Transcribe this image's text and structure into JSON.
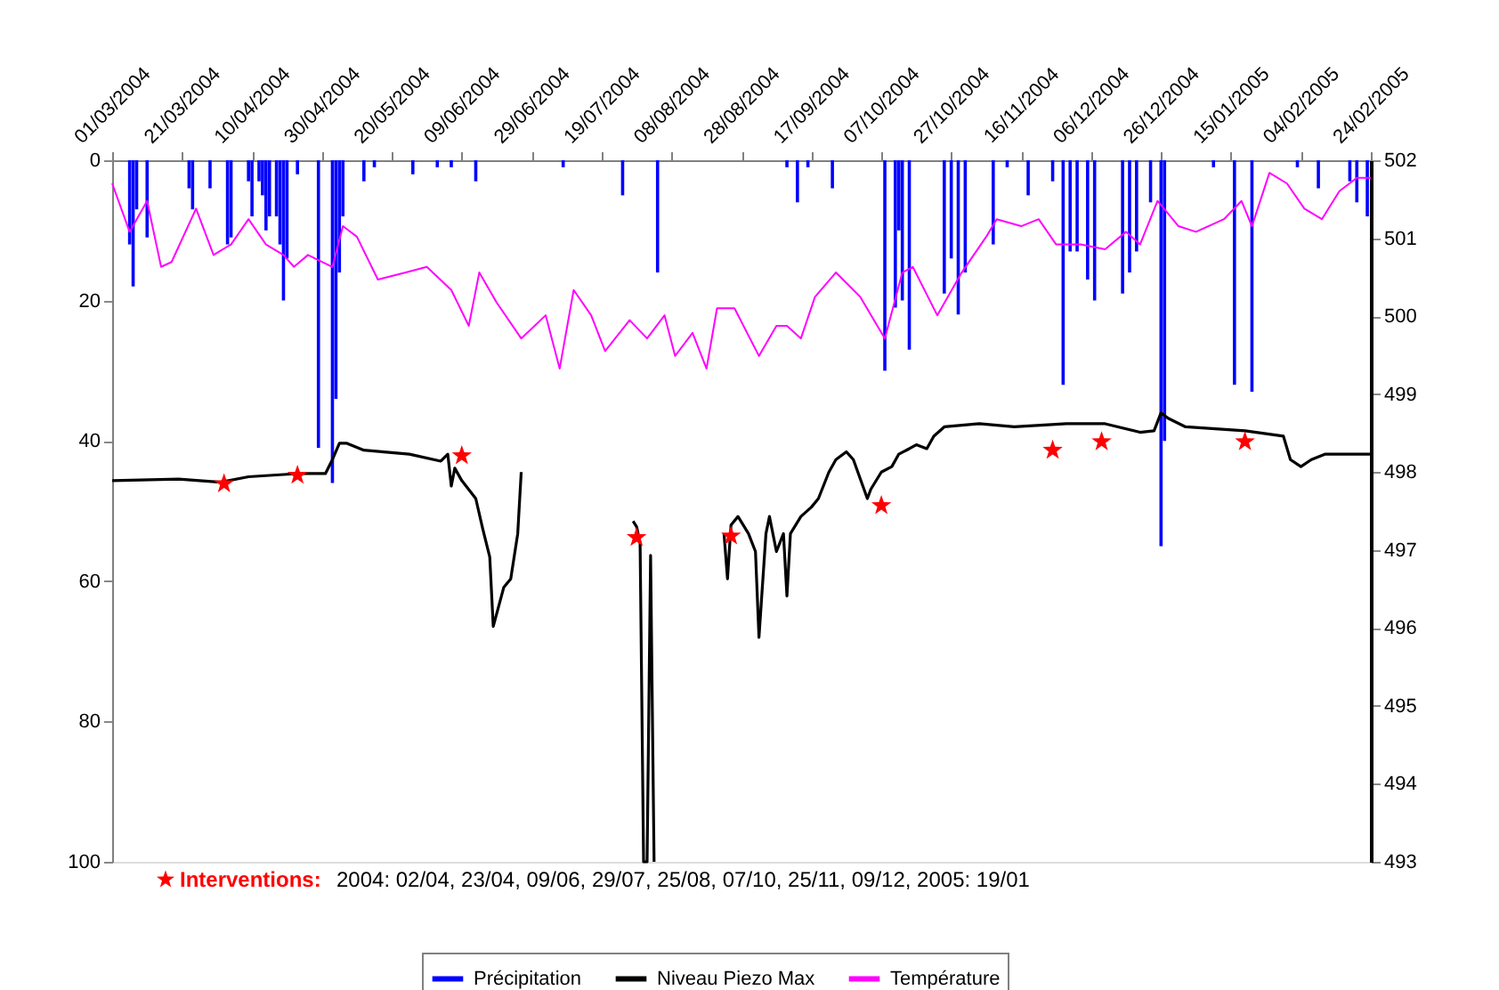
{
  "chart_data": {
    "type": "bar",
    "legend": "bottom",
    "ylim": [
      100,
      0
    ],
    "yticks": [
      0,
      20,
      40,
      60,
      80,
      100
    ],
    "y2lim": [
      493,
      502
    ],
    "y2ticks": [
      493,
      494,
      495,
      496,
      497,
      498,
      499,
      500,
      501,
      502
    ],
    "xlim": [
      "2004-03-01",
      "2005-02-24"
    ],
    "xticks": [
      {
        "value": "2004-03-01",
        "label": "01/03/2004"
      },
      {
        "value": "2004-03-21",
        "label": "21/03/2004"
      },
      {
        "value": "2004-04-10",
        "label": "10/04/2004"
      },
      {
        "value": "2004-04-30",
        "label": "30/04/2004"
      },
      {
        "value": "2004-05-20",
        "label": "20/05/2004"
      },
      {
        "value": "2004-06-09",
        "label": "09/06/2004"
      },
      {
        "value": "2004-06-29",
        "label": "29/06/2004"
      },
      {
        "value": "2004-07-19",
        "label": "19/07/2004"
      },
      {
        "value": "2004-08-08",
        "label": "08/08/2004"
      },
      {
        "value": "2004-08-28",
        "label": "28/08/2004"
      },
      {
        "value": "2004-09-17",
        "label": "17/09/2004"
      },
      {
        "value": "2004-10-07",
        "label": "07/10/2004"
      },
      {
        "value": "2004-10-27",
        "label": "27/10/2004"
      },
      {
        "value": "2004-11-16",
        "label": "16/11/2004"
      },
      {
        "value": "2004-12-06",
        "label": "06/12/2004"
      },
      {
        "value": "2004-12-26",
        "label": "26/12/2004"
      },
      {
        "value": "2005-01-15",
        "label": "15/01/2005"
      },
      {
        "value": "2005-02-04",
        "label": "04/02/2005"
      },
      {
        "value": "2005-02-24",
        "label": "24/02/2005"
      }
    ],
    "annotations": [
      "2004: 02/04, 23/04, 09/06, 29/07, 25/08, 07/10, 25/11, 09/12, 2005: 19/01"
    ],
    "series": [
      {
        "name": "Précipitation",
        "color": "#0000ff",
        "x": [
          "2004-03-06",
          "2004-03-07",
          "2004-03-08",
          "2004-03-11",
          "2004-03-23",
          "2004-03-24",
          "2004-03-29",
          "2004-04-03",
          "2004-04-04",
          "2004-04-09",
          "2004-04-10",
          "2004-04-12",
          "2004-04-13",
          "2004-04-14",
          "2004-04-15",
          "2004-04-17",
          "2004-04-18",
          "2004-04-19",
          "2004-04-20",
          "2004-04-23",
          "2004-04-29",
          "2004-05-03",
          "2004-05-04",
          "2004-05-05",
          "2004-05-06",
          "2004-05-12",
          "2004-05-15",
          "2004-05-26",
          "2004-06-02",
          "2004-06-06",
          "2004-06-13",
          "2004-07-08",
          "2004-07-25",
          "2004-08-04",
          "2004-09-10",
          "2004-09-13",
          "2004-09-16",
          "2004-09-23",
          "2004-10-08",
          "2004-10-11",
          "2004-10-12",
          "2004-10-13",
          "2004-10-15",
          "2004-10-25",
          "2004-10-27",
          "2004-10-29",
          "2004-10-31",
          "2004-11-08",
          "2004-11-12",
          "2004-11-18",
          "2004-11-25",
          "2004-11-28",
          "2004-11-30",
          "2004-12-02",
          "2004-12-05",
          "2004-12-07",
          "2004-12-15",
          "2004-12-17",
          "2004-12-19",
          "2004-12-23",
          "2004-12-26",
          "2004-12-27",
          "2005-01-10",
          "2005-01-16",
          "2005-01-21",
          "2005-02-03",
          "2005-02-09",
          "2005-02-18",
          "2005-02-20",
          "2005-02-23"
        ],
        "values": [
          12,
          18,
          7,
          11,
          4,
          7,
          4,
          12,
          11,
          3,
          8,
          3,
          5,
          10,
          8,
          8,
          12,
          20,
          14,
          2,
          41,
          46,
          34,
          16,
          8,
          3,
          1,
          2,
          1,
          1,
          3,
          1,
          5,
          16,
          1,
          6,
          1,
          4,
          30,
          21,
          10,
          20,
          27,
          19,
          14,
          22,
          16,
          12,
          1,
          5,
          3,
          32,
          13,
          13,
          17,
          20,
          19,
          16,
          13,
          6,
          55,
          40,
          1,
          32,
          33,
          1,
          4,
          3,
          6,
          8
        ]
      },
      {
        "name": "Niveau Piezo Max",
        "type": "line",
        "color": "#000000",
        "axis": "y2",
        "x": [
          "2004-03-01",
          "2004-03-20",
          "2004-04-01",
          "2004-04-09",
          "2004-04-23",
          "2004-05-01",
          "2004-05-03",
          "2004-05-05",
          "2004-05-07",
          "2004-05-12",
          "2004-05-25",
          "2004-06-03",
          "2004-06-05",
          "2004-06-06",
          "2004-06-07",
          "2004-06-09",
          "2004-06-13",
          "2004-06-15",
          "2004-06-17",
          "2004-06-18",
          "2004-06-21",
          "2004-06-23",
          "2004-06-25",
          "2004-06-26",
          "2004-07-10",
          "2004-07-28",
          "2004-07-29",
          "2004-07-30",
          "2004-07-31",
          "2004-08-01",
          "2004-08-02",
          "2004-08-03",
          "2004-08-12",
          "2004-08-23",
          "2004-08-24",
          "2004-08-25",
          "2004-08-27",
          "2004-08-30",
          "2004-09-01",
          "2004-09-02",
          "2004-09-04",
          "2004-09-05",
          "2004-09-07",
          "2004-09-09",
          "2004-09-10",
          "2004-09-11",
          "2004-09-14",
          "2004-09-17",
          "2004-09-19",
          "2004-09-22",
          "2004-09-24",
          "2004-09-27",
          "2004-09-29",
          "2004-10-03",
          "2004-10-04",
          "2004-10-07",
          "2004-10-10",
          "2004-10-12",
          "2004-10-15",
          "2004-10-17",
          "2004-10-20",
          "2004-10-22",
          "2004-10-25",
          "2004-11-04",
          "2004-11-14",
          "2004-11-29",
          "2004-12-10",
          "2004-12-20",
          "2004-12-24",
          "2004-12-26",
          "2004-12-28",
          "2005-01-02",
          "2005-01-19",
          "2005-01-30",
          "2005-02-01",
          "2005-02-04",
          "2005-02-07",
          "2005-02-11",
          "2005-02-24"
        ],
        "values": [
          497.89,
          497.91,
          497.87,
          497.94,
          497.98,
          497.98,
          498.16,
          498.37,
          498.37,
          498.28,
          498.23,
          498.14,
          498.23,
          497.82,
          498.05,
          497.89,
          497.66,
          497.27,
          496.91,
          496.02,
          496.52,
          496.63,
          497.21,
          498.0,
          null,
          497.37,
          497.3,
          497.09,
          493.0,
          493.0,
          496.93,
          493.0,
          null,
          497.21,
          496.63,
          497.32,
          497.43,
          497.21,
          496.98,
          495.88,
          497.21,
          497.43,
          496.98,
          497.21,
          496.41,
          497.21,
          497.43,
          497.55,
          497.66,
          498.0,
          498.16,
          498.26,
          498.16,
          497.66,
          497.78,
          498.0,
          498.07,
          498.23,
          498.3,
          498.35,
          498.3,
          498.46,
          498.58,
          498.62,
          498.58,
          498.62,
          498.62,
          498.51,
          498.53,
          498.76,
          498.69,
          498.58,
          498.53,
          498.46,
          498.16,
          498.07,
          498.16,
          498.23,
          498.23
        ]
      },
      {
        "name": "Température",
        "type": "line",
        "color": "#ff00ff",
        "x": [
          "2004-03-01",
          "2004-03-06",
          "2004-03-11",
          "2004-03-15",
          "2004-03-18",
          "2004-03-25",
          "2004-03-30",
          "2004-04-04",
          "2004-04-09",
          "2004-04-14",
          "2004-04-19",
          "2004-04-22",
          "2004-04-26",
          "2004-05-03",
          "2004-05-06",
          "2004-05-10",
          "2004-05-16",
          "2004-05-24",
          "2004-05-30",
          "2004-06-06",
          "2004-06-11",
          "2004-06-14",
          "2004-06-19",
          "2004-06-26",
          "2004-07-03",
          "2004-07-07",
          "2004-07-11",
          "2004-07-16",
          "2004-07-20",
          "2004-07-27",
          "2004-08-01",
          "2004-08-06",
          "2004-08-09",
          "2004-08-14",
          "2004-08-18",
          "2004-08-21",
          "2004-08-26",
          "2004-09-02",
          "2004-09-07",
          "2004-09-10",
          "2004-09-14",
          "2004-09-18",
          "2004-09-24",
          "2004-10-01",
          "2004-10-08",
          "2004-10-13",
          "2004-10-16",
          "2004-10-23",
          "2004-10-30",
          "2004-11-06",
          "2004-11-09",
          "2004-11-16",
          "2004-11-21",
          "2004-11-26",
          "2004-12-03",
          "2004-12-10",
          "2004-12-16",
          "2004-12-20",
          "2004-12-25",
          "2004-12-31",
          "2005-01-05",
          "2005-01-13",
          "2005-01-18",
          "2005-01-21",
          "2005-01-26",
          "2005-01-31",
          "2005-02-05",
          "2005-02-10",
          "2005-02-15",
          "2005-02-20",
          "2005-02-24"
        ],
        "values": [
          3.3,
          10.2,
          5.8,
          15.2,
          14.5,
          6.9,
          13.5,
          12.0,
          8.4,
          12.0,
          13.5,
          15.2,
          13.5,
          15.2,
          9.4,
          10.9,
          17.0,
          16.0,
          15.2,
          18.5,
          23.6,
          16.0,
          20.3,
          25.4,
          22.1,
          29.7,
          18.5,
          22.1,
          27.2,
          22.8,
          25.4,
          22.1,
          27.9,
          24.6,
          29.7,
          21.1,
          21.1,
          27.9,
          23.6,
          23.6,
          25.4,
          19.5,
          16.0,
          19.5,
          25.4,
          16.0,
          15.2,
          22.1,
          16.0,
          10.9,
          8.4,
          9.4,
          8.4,
          12.0,
          12.0,
          12.7,
          10.2,
          12.0,
          5.8,
          9.4,
          10.2,
          8.4,
          5.8,
          9.4,
          1.8,
          3.3,
          6.9,
          8.4,
          4.4,
          2.5,
          2.5
        ]
      },
      {
        "name": "Interventions:",
        "type": "scatter",
        "marker": "star",
        "color": "#ff0000",
        "axis": "y2",
        "x": [
          "2004-04-02",
          "2004-04-23",
          "2004-06-09",
          "2004-07-29",
          "2004-08-25",
          "2004-10-07",
          "2004-11-25",
          "2004-12-09",
          "2005-01-19"
        ],
        "values": [
          497.85,
          497.96,
          498.21,
          497.16,
          497.18,
          497.57,
          498.28,
          498.39,
          498.39
        ]
      }
    ]
  }
}
